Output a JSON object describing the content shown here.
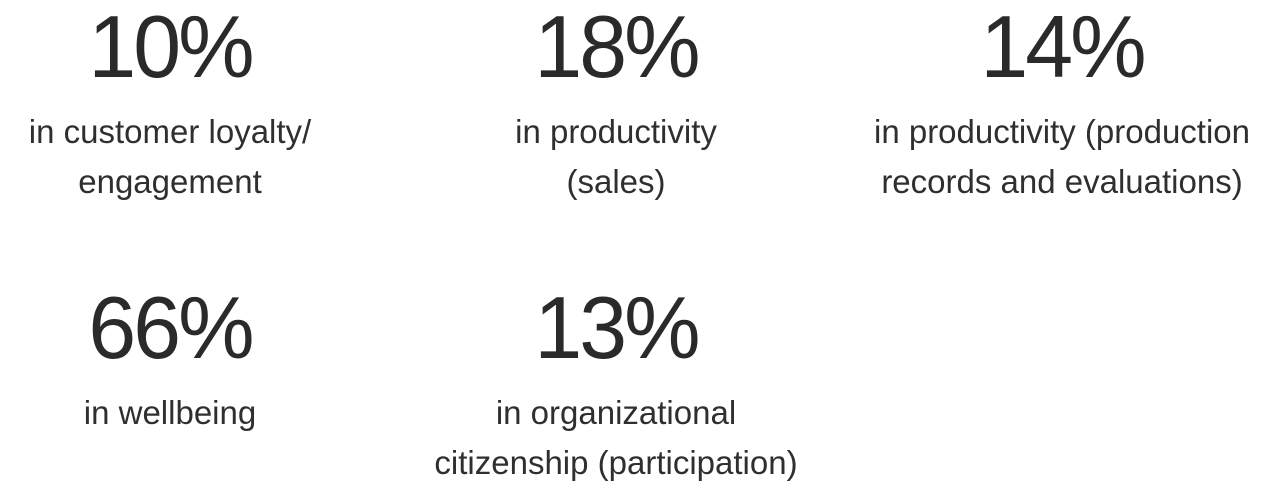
{
  "stats": [
    {
      "value": "10%",
      "line1": "in customer loyalty/",
      "line2": "engagement"
    },
    {
      "value": "18%",
      "line1": "in productivity",
      "line2": "(sales)"
    },
    {
      "value": "14%",
      "line1": "in productivity (production",
      "line2": "records and evaluations)"
    },
    {
      "value": "66%",
      "line1": "in wellbeing",
      "line2": ""
    },
    {
      "value": "13%",
      "line1": "in organizational",
      "line2": "citizenship (participation)"
    }
  ],
  "colors": {
    "text": "#2a2a2a",
    "background": "#ffffff"
  }
}
